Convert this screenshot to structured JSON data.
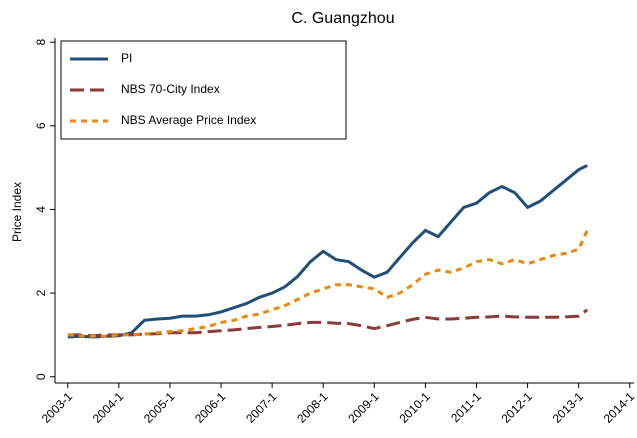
{
  "chart_data": {
    "type": "line",
    "title": "C. Guangzhou",
    "y_label": "Price Index",
    "x": [
      "2003-1",
      "2003-4",
      "2003-7",
      "2003-10",
      "2004-1",
      "2004-4",
      "2004-7",
      "2004-10",
      "2005-1",
      "2005-4",
      "2005-7",
      "2005-10",
      "2006-1",
      "2006-4",
      "2006-7",
      "2006-10",
      "2007-1",
      "2007-4",
      "2007-7",
      "2007-10",
      "2008-1",
      "2008-4",
      "2008-7",
      "2008-10",
      "2009-1",
      "2009-4",
      "2009-7",
      "2009-10",
      "2010-1",
      "2010-4",
      "2010-7",
      "2010-10",
      "2011-1",
      "2011-4",
      "2011-7",
      "2011-10",
      "2012-1",
      "2012-4",
      "2012-7",
      "2012-10",
      "2013-1",
      "2013-3"
    ],
    "series": [
      {
        "name": "PI",
        "color": "#1f4e79",
        "style": "solid",
        "values": [
          0.95,
          0.97,
          0.95,
          0.97,
          0.98,
          1.05,
          1.35,
          1.38,
          1.4,
          1.45,
          1.45,
          1.48,
          1.55,
          1.65,
          1.75,
          1.9,
          2.0,
          2.15,
          2.4,
          2.75,
          3.0,
          2.8,
          2.75,
          2.55,
          2.38,
          2.5,
          2.85,
          3.2,
          3.5,
          3.35,
          3.7,
          4.05,
          4.15,
          4.4,
          4.55,
          4.4,
          4.05,
          4.2,
          4.45,
          4.7,
          4.95,
          5.05
        ]
      },
      {
        "name": "NBS 70-City Index",
        "color": "#8b3a3a",
        "style": "longdash",
        "values": [
          1.0,
          1.0,
          0.98,
          1.0,
          1.0,
          1.0,
          1.02,
          1.03,
          1.05,
          1.05,
          1.05,
          1.08,
          1.1,
          1.12,
          1.15,
          1.18,
          1.2,
          1.23,
          1.27,
          1.3,
          1.3,
          1.28,
          1.27,
          1.22,
          1.15,
          1.22,
          1.3,
          1.37,
          1.42,
          1.38,
          1.38,
          1.4,
          1.42,
          1.43,
          1.45,
          1.43,
          1.42,
          1.42,
          1.42,
          1.43,
          1.45,
          1.6
        ]
      },
      {
        "name": "NBS Average Price Index",
        "color": "#e8890c",
        "style": "shortdash",
        "values": [
          1.0,
          0.98,
          0.97,
          0.97,
          1.0,
          1.0,
          1.02,
          1.05,
          1.08,
          1.1,
          1.15,
          1.2,
          1.3,
          1.35,
          1.45,
          1.5,
          1.6,
          1.7,
          1.85,
          2.0,
          2.1,
          2.2,
          2.2,
          2.15,
          2.1,
          1.9,
          2.0,
          2.2,
          2.45,
          2.55,
          2.5,
          2.6,
          2.75,
          2.8,
          2.7,
          2.8,
          2.7,
          2.8,
          2.9,
          2.95,
          3.05,
          3.5
        ]
      }
    ],
    "xlim": [
      "2002-10",
      "2014-2"
    ],
    "xticks": [
      "2003-1",
      "2004-1",
      "2005-1",
      "2006-1",
      "2007-1",
      "2008-1",
      "2009-1",
      "2010-1",
      "2011-1",
      "2012-1",
      "2013-1",
      "2014-1"
    ],
    "ylim": [
      -0.15,
      8.1
    ],
    "yticks": [
      0,
      2,
      4,
      6,
      8
    ],
    "legend": "upper left"
  }
}
